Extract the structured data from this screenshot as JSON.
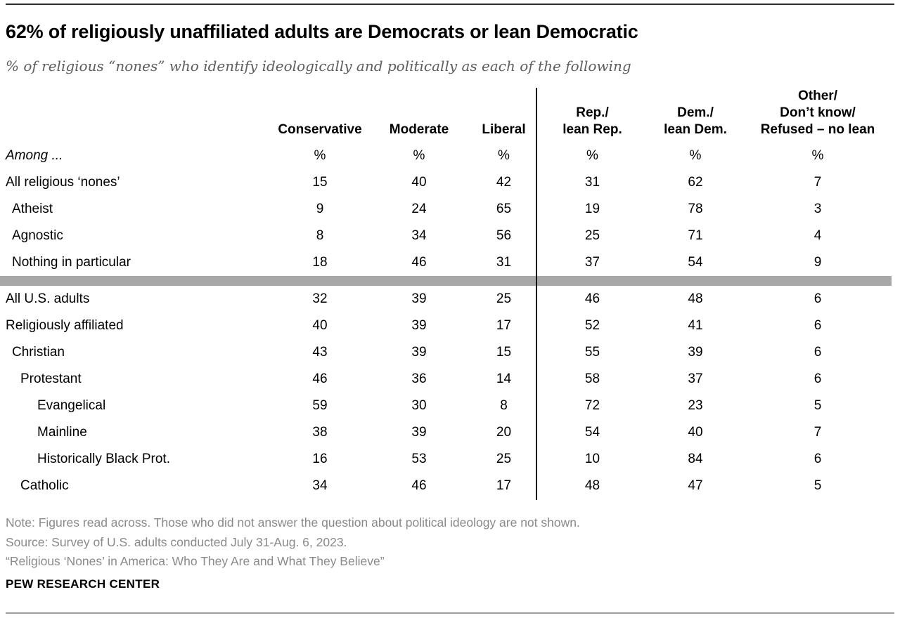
{
  "figure": {
    "title": "62% of religiously unaffiliated adults are Democrats or lean Democratic",
    "subtitle": "% of religious “nones” who identify ideologically and politically as each of the following",
    "among_label": "Among ...",
    "percent_symbol": "%"
  },
  "table": {
    "columns": [
      {
        "label": "Conservative"
      },
      {
        "label": "Moderate"
      },
      {
        "label": "Liberal"
      },
      {
        "line1": "Rep./",
        "line2": "lean Rep."
      },
      {
        "line1": "Dem./",
        "line2": "lean Dem."
      },
      {
        "line1": "Other/",
        "line2": "Don’t know/",
        "line3": "Refused – no lean"
      }
    ]
  },
  "chart_data": {
    "type": "table",
    "title": "62% of religiously unaffiliated adults are Democrats or lean Democratic",
    "subtitle": "% of religious “nones” who identify ideologically and politically as each of the following",
    "columns": [
      "Conservative",
      "Moderate",
      "Liberal",
      "Rep./lean Rep.",
      "Dem./lean Dem.",
      "Other/Don’t know/Refused – no lean"
    ],
    "unit": "%",
    "sections": [
      {
        "rows": [
          {
            "label": "All religious ‘nones’",
            "level": 0,
            "values": [
              15,
              40,
              42,
              31,
              62,
              7
            ]
          },
          {
            "label": "Atheist",
            "level": 1,
            "values": [
              9,
              24,
              65,
              19,
              78,
              3
            ]
          },
          {
            "label": "Agnostic",
            "level": 1,
            "values": [
              8,
              34,
              56,
              25,
              71,
              4
            ]
          },
          {
            "label": "Nothing in particular",
            "level": 1,
            "values": [
              18,
              46,
              31,
              37,
              54,
              9
            ]
          }
        ]
      },
      {
        "rows": [
          {
            "label": "All U.S. adults",
            "level": 0,
            "values": [
              32,
              39,
              25,
              46,
              48,
              6
            ]
          },
          {
            "label": "Religiously affiliated",
            "level": 0,
            "values": [
              40,
              39,
              17,
              52,
              41,
              6
            ]
          },
          {
            "label": "Christian",
            "level": 1,
            "values": [
              43,
              39,
              15,
              55,
              39,
              6
            ]
          },
          {
            "label": "Protestant",
            "level": 2,
            "values": [
              46,
              36,
              14,
              58,
              37,
              6
            ]
          },
          {
            "label": "Evangelical",
            "level": 3,
            "values": [
              59,
              30,
              8,
              72,
              23,
              5
            ]
          },
          {
            "label": "Mainline",
            "level": 3,
            "values": [
              38,
              39,
              20,
              54,
              40,
              7
            ]
          },
          {
            "label": "Historically Black Prot.",
            "level": 3,
            "values": [
              16,
              53,
              25,
              10,
              84,
              6
            ]
          },
          {
            "label": "Catholic",
            "level": 2,
            "values": [
              34,
              46,
              17,
              48,
              47,
              5
            ]
          }
        ]
      }
    ]
  },
  "footer": {
    "note": "Note: Figures read across. Those who did not answer the question about political ideology are not shown.",
    "source": "Source: Survey of U.S. adults conducted July 31-Aug. 6, 2023.",
    "report": "“Religious ‘Nones’ in America: Who They Are and What They Believe”",
    "brand": "PEW RESEARCH CENTER"
  },
  "colors": {
    "section_bar": "#a8a8a8",
    "divider": "#000000",
    "top_rule": "#2e2e2e",
    "bottom_rule": "#9b9b9b",
    "note_text": "#8a8a8a",
    "subtitle_text": "#5e5e5e"
  }
}
